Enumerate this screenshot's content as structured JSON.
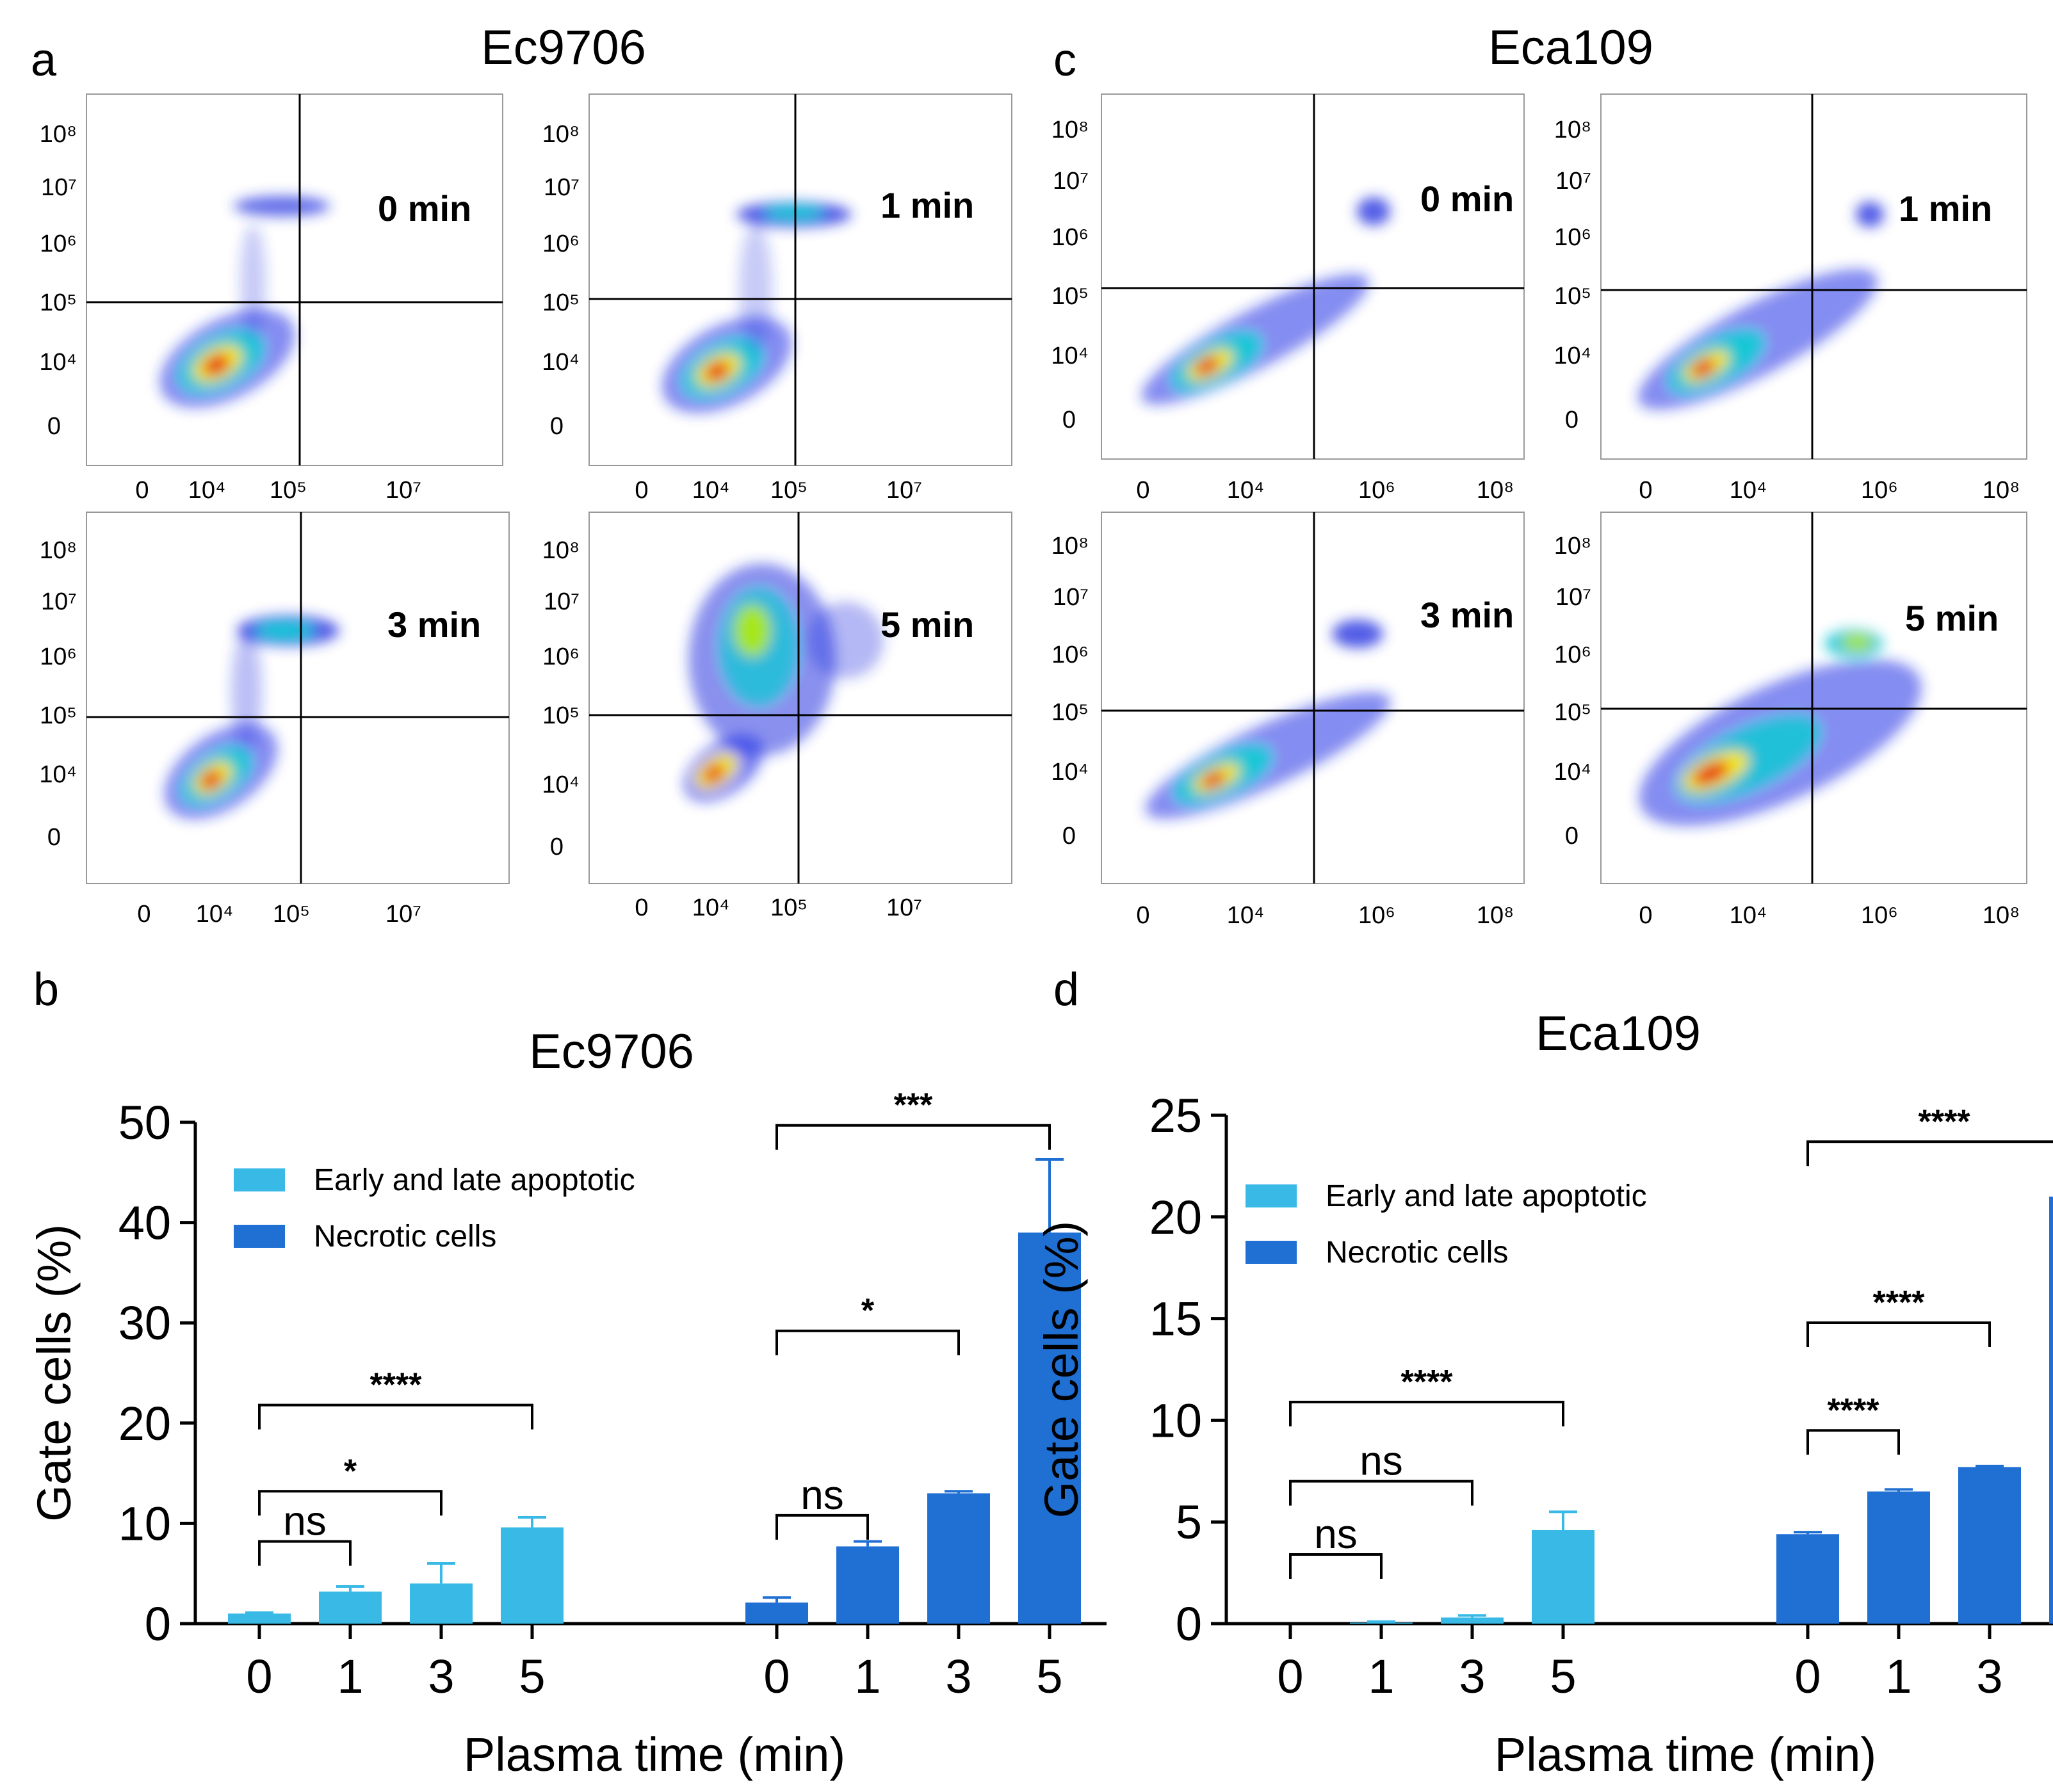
{
  "panels": {
    "a": {
      "letter": "a",
      "title": "Ec9706"
    },
    "b": {
      "letter": "b",
      "title": "Ec9706"
    },
    "c": {
      "letter": "c",
      "title": "Eca109"
    },
    "d": {
      "letter": "d",
      "title": "Eca109"
    }
  },
  "flow_panels": [
    {
      "cell_line": "Ec9706",
      "y_ticks": [
        "10⁸",
        "10⁷",
        "10⁶",
        "10⁵",
        "10⁴",
        "0"
      ],
      "x_ticks": [
        "0",
        "10⁴",
        "10⁵",
        "10⁷"
      ],
      "plots": [
        {
          "label": "0 min"
        },
        {
          "label": "1 min"
        },
        {
          "label": "3 min"
        },
        {
          "label": "5 min"
        }
      ]
    },
    {
      "cell_line": "Eca109",
      "y_ticks": [
        "10⁸",
        "10⁷",
        "10⁶",
        "10⁵",
        "10⁴",
        "0"
      ],
      "x_ticks": [
        "0",
        "10⁴",
        "10⁶",
        "10⁸"
      ],
      "plots": [
        {
          "label": "0 min"
        },
        {
          "label": "1 min"
        },
        {
          "label": "3 min"
        },
        {
          "label": "5 min"
        }
      ]
    }
  ],
  "colors": {
    "early_late_apoptotic": "#39b9e6",
    "necrotic": "#2070d4",
    "axis": "#000000"
  },
  "chart_data": [
    {
      "type": "bar",
      "title": "Ec9706",
      "xlabel": "Plasma time (min)",
      "ylabel": "Gate cells (%)",
      "ylim": [
        0,
        50
      ],
      "yticks": [
        0,
        10,
        20,
        30,
        40,
        50
      ],
      "legend_position": "top-left",
      "categories": [
        "0",
        "1",
        "3",
        "5"
      ],
      "series": [
        {
          "name": "Early and late apoptotic",
          "values": [
            1.0,
            3.2,
            4.0,
            9.6
          ],
          "errors": [
            0.1,
            0.5,
            2.0,
            1.0
          ]
        },
        {
          "name": "Necrotic cells",
          "values": [
            2.1,
            7.7,
            13.0,
            39.0
          ],
          "errors": [
            0.5,
            0.5,
            0.2,
            7.3
          ]
        }
      ],
      "significance": [
        {
          "series": 0,
          "from": 0,
          "to": 1,
          "label": "ns",
          "level": 8.2
        },
        {
          "series": 0,
          "from": 0,
          "to": 2,
          "label": "*",
          "level": 13.2
        },
        {
          "series": 0,
          "from": 0,
          "to": 3,
          "label": "****",
          "level": 21.8
        },
        {
          "series": 1,
          "from": 0,
          "to": 1,
          "label": "ns",
          "level": 10.8
        },
        {
          "series": 1,
          "from": 0,
          "to": 2,
          "label": "*",
          "level": 29.2
        },
        {
          "series": 1,
          "from": 0,
          "to": 3,
          "label": "***",
          "level": 49.7
        }
      ]
    },
    {
      "type": "bar",
      "title": "Eca109",
      "xlabel": "Plasma time (min)",
      "ylabel": "Gate cells (%)",
      "ylim": [
        0,
        25
      ],
      "yticks": [
        0,
        5,
        10,
        15,
        20,
        25
      ],
      "legend_position": "top-left",
      "categories": [
        "0",
        "1",
        "3",
        "5"
      ],
      "series": [
        {
          "name": "Early and late apoptotic",
          "values": [
            0.0,
            0.05,
            0.3,
            4.6
          ],
          "errors": [
            0.0,
            0.05,
            0.1,
            0.9
          ]
        },
        {
          "name": "Necrotic cells",
          "values": [
            4.4,
            6.5,
            7.7,
            21.0
          ],
          "errors": [
            0.1,
            0.1,
            0.05,
            0.3
          ]
        }
      ],
      "significance": [
        {
          "series": 0,
          "from": 0,
          "to": 1,
          "label": "ns",
          "level": 3.4
        },
        {
          "series": 0,
          "from": 0,
          "to": 2,
          "label": "ns",
          "level": 7.0
        },
        {
          "series": 0,
          "from": 0,
          "to": 3,
          "label": "****",
          "level": 10.9
        },
        {
          "series": 1,
          "from": 0,
          "to": 1,
          "label": "****",
          "level": 9.5
        },
        {
          "series": 1,
          "from": 0,
          "to": 2,
          "label": "****",
          "level": 14.8
        },
        {
          "series": 1,
          "from": 0,
          "to": 3,
          "label": "****",
          "level": 23.7
        }
      ]
    }
  ]
}
